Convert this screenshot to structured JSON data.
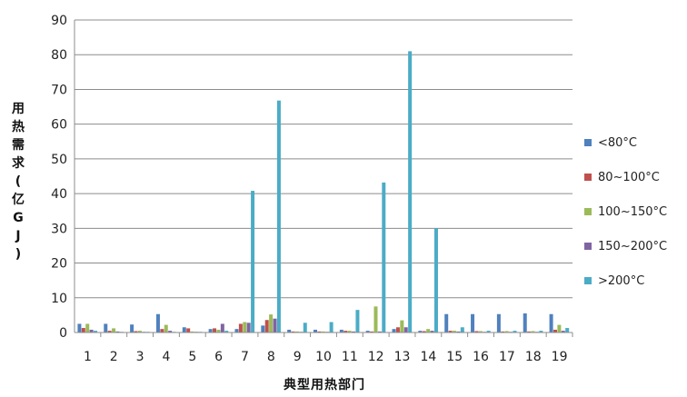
{
  "chart_data": {
    "type": "bar",
    "title": "",
    "xlabel": "典型用热部门",
    "ylabel": "用热需求(亿GJ)",
    "ylim": [
      0,
      90
    ],
    "yticks": [
      0,
      10,
      20,
      30,
      40,
      50,
      60,
      70,
      80,
      90
    ],
    "grid": true,
    "legend_position": "right",
    "categories": [
      "1",
      "2",
      "3",
      "4",
      "5",
      "6",
      "7",
      "8",
      "9",
      "10",
      "11",
      "12",
      "13",
      "14",
      "15",
      "16",
      "17",
      "18",
      "19"
    ],
    "series": [
      {
        "name": "<80°C",
        "color": "#4F81BD",
        "values": [
          2.5,
          2.5,
          2.3,
          5.3,
          1.5,
          1.0,
          1.0,
          2.0,
          0.8,
          0.8,
          0.8,
          0.5,
          1.0,
          0.5,
          5.3,
          5.3,
          5.3,
          5.5,
          5.3
        ]
      },
      {
        "name": "80~100°C",
        "color": "#C0504D",
        "values": [
          1.3,
          0.5,
          0.4,
          1.0,
          1.2,
          1.2,
          2.5,
          3.6,
          0.3,
          0.3,
          0.5,
          0.3,
          1.5,
          0.4,
          0.5,
          0.4,
          0.3,
          0.3,
          0.8
        ]
      },
      {
        "name": "100~150°C",
        "color": "#9BBB59",
        "values": [
          2.5,
          1.2,
          0.5,
          2.2,
          0.3,
          0.8,
          3.0,
          5.2,
          0.3,
          0.3,
          0.5,
          7.5,
          3.5,
          1.0,
          0.5,
          0.4,
          0.4,
          0.4,
          2.2
        ]
      },
      {
        "name": "150~200°C",
        "color": "#8064A2",
        "values": [
          0.8,
          0.3,
          0.2,
          0.5,
          0.2,
          2.5,
          2.8,
          4.0,
          0.2,
          0.2,
          0.3,
          0.3,
          1.5,
          0.5,
          0.3,
          0.2,
          0.2,
          0.2,
          0.5
        ]
      },
      {
        "name": ">200°C",
        "color": "#4BACC6",
        "values": [
          0.5,
          0.2,
          0.2,
          0.2,
          0.2,
          0.5,
          40.8,
          66.8,
          2.8,
          3.0,
          6.5,
          43.2,
          81.0,
          30.0,
          1.5,
          0.5,
          0.5,
          0.5,
          1.3
        ]
      }
    ]
  }
}
